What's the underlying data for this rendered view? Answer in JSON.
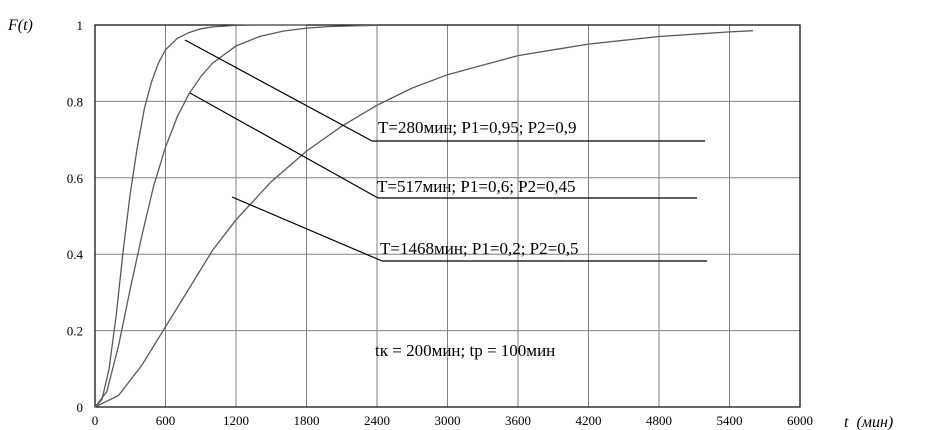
{
  "chart_data": {
    "type": "line",
    "title": "",
    "xlabel": "t  (мин)",
    "ylabel": "F(t)",
    "xlim": [
      0,
      6000
    ],
    "ylim": [
      0,
      1
    ],
    "x_ticks": [
      "0",
      "600",
      "1200",
      "1800",
      "2400",
      "3000",
      "3600",
      "4200",
      "4800",
      "5400",
      "6000"
    ],
    "y_ticks": [
      "0",
      "0.2",
      "0.4",
      "0.6",
      "0.8",
      "1"
    ],
    "grid": true,
    "series": [
      {
        "name": "T=280мин; P1=0,95; P2=0,9",
        "x": [
          0,
          60,
          120,
          180,
          240,
          300,
          360,
          420,
          480,
          540,
          600,
          700,
          800,
          900,
          1000,
          1200,
          1400,
          1600,
          1800
        ],
        "y": [
          0,
          0.02,
          0.1,
          0.24,
          0.41,
          0.56,
          0.68,
          0.78,
          0.85,
          0.9,
          0.935,
          0.965,
          0.98,
          0.99,
          0.995,
          0.999,
          1.0,
          1.0,
          1.0
        ]
      },
      {
        "name": "T=517мин; P1=0,6; P2=0,45",
        "x": [
          0,
          100,
          200,
          300,
          400,
          500,
          600,
          700,
          800,
          900,
          1000,
          1200,
          1400,
          1600,
          1800,
          2000,
          2200,
          2400
        ],
        "y": [
          0,
          0.04,
          0.16,
          0.31,
          0.45,
          0.58,
          0.68,
          0.76,
          0.82,
          0.865,
          0.9,
          0.945,
          0.97,
          0.984,
          0.992,
          0.996,
          0.998,
          0.999
        ]
      },
      {
        "name": "T=1468мин; P1=0,2; P2=0,5",
        "x": [
          0,
          200,
          400,
          600,
          800,
          1000,
          1200,
          1500,
          1800,
          2100,
          2400,
          2700,
          3000,
          3300,
          3600,
          3900,
          4200,
          4500,
          4800,
          5100,
          5400,
          5600
        ],
        "y": [
          0,
          0.03,
          0.11,
          0.21,
          0.31,
          0.41,
          0.49,
          0.59,
          0.67,
          0.735,
          0.79,
          0.835,
          0.87,
          0.895,
          0.92,
          0.935,
          0.95,
          0.96,
          0.97,
          0.976,
          0.982,
          0.985
        ]
      }
    ],
    "annotations": [
      {
        "text": "T=280мин; P1=0,95; P2=0,9",
        "series": 0
      },
      {
        "text": "T=517мин; P1=0,6; P2=0,45",
        "series": 1
      },
      {
        "text": "T=1468мин; P1=0,2; P2=0,5",
        "series": 2
      }
    ],
    "note": "tк = 200мин; tр = 100мин"
  }
}
